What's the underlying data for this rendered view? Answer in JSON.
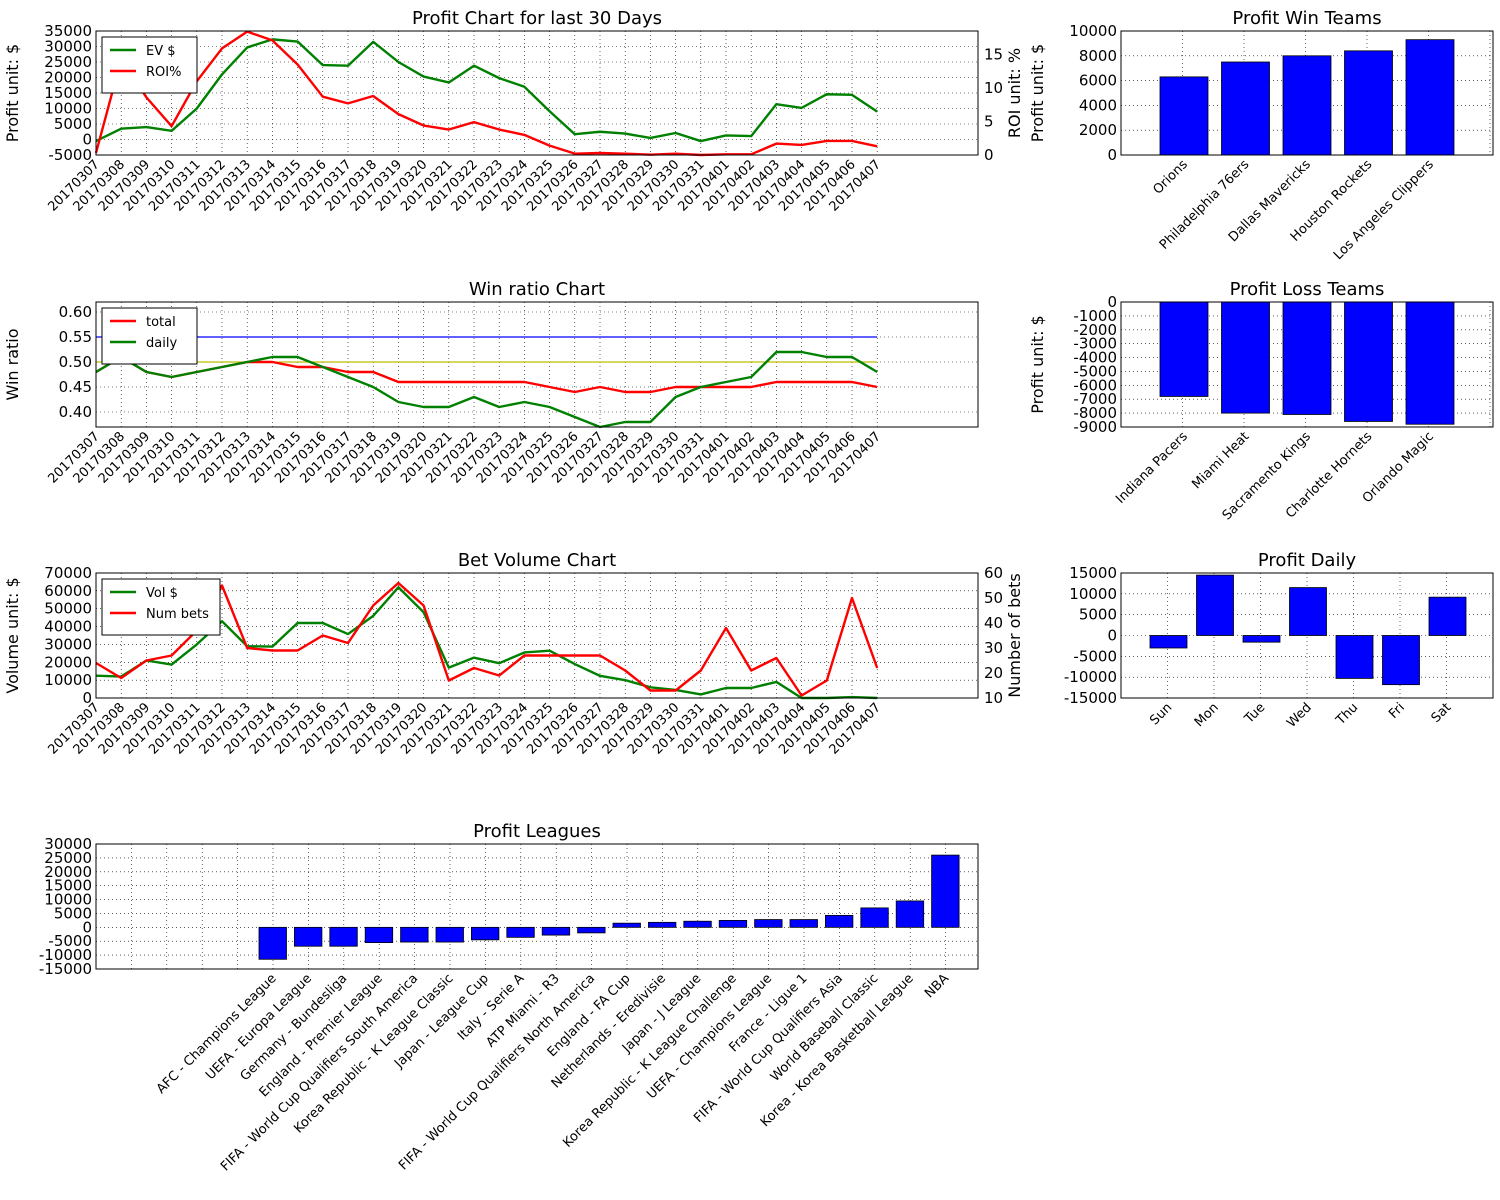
{
  "colors": {
    "green": "#008000",
    "red": "#ff0000",
    "blue": "#0000ff",
    "yellow": "#bfbf00"
  },
  "chart_data": [
    {
      "id": "profit",
      "type": "line",
      "title": "Profit Chart for last 30 Days",
      "ylabel": "Profit unit: $",
      "ylabel_right": "ROI unit: %",
      "categories": [
        "20170307",
        "20170308",
        "20170309",
        "20170310",
        "20170311",
        "20170312",
        "20170313",
        "20170314",
        "20170315",
        "20170316",
        "20170317",
        "20170318",
        "20170319",
        "20170320",
        "20170321",
        "20170322",
        "20170323",
        "20170324",
        "20170325",
        "20170326",
        "20170327",
        "20170328",
        "20170329",
        "20170330",
        "20170331",
        "20170401",
        "20170402",
        "20170403",
        "20170404",
        "20170405",
        "20170406",
        "20170407"
      ],
      "ylim": [
        -5000,
        35000
      ],
      "yticks": [
        -5000,
        0,
        5000,
        10000,
        15000,
        20000,
        25000,
        30000,
        35000
      ],
      "ylim_right": [
        0,
        18.5
      ],
      "yticks_right": [
        0,
        5,
        10,
        15
      ],
      "legend": "top-left",
      "series": [
        {
          "name": "EV $",
          "axis": "left",
          "color": "green",
          "values": [
            -500,
            3500,
            4000,
            2800,
            10000,
            21000,
            29700,
            32300,
            31600,
            24000,
            23800,
            31500,
            25000,
            20300,
            18400,
            23800,
            19800,
            17000,
            9100,
            1700,
            2500,
            1900,
            500,
            2100,
            -500,
            1300,
            1100,
            11400,
            10200,
            14600,
            14400,
            9000
          ]
        },
        {
          "name": "ROI%",
          "axis": "right",
          "color": "red",
          "values": [
            0.3,
            14.3,
            8.6,
            4.3,
            11.0,
            15.9,
            18.4,
            17.1,
            13.5,
            8.7,
            7.7,
            8.8,
            6.1,
            4.4,
            3.8,
            4.9,
            3.8,
            3.0,
            1.4,
            0.2,
            0.3,
            0.2,
            0.05,
            0.2,
            0.0,
            0.1,
            0.1,
            1.7,
            1.5,
            2.1,
            2.1,
            1.3
          ]
        }
      ]
    },
    {
      "id": "winratio",
      "type": "line",
      "title": "Win ratio Chart",
      "ylabel": "Win ratio",
      "categories": [
        "20170307",
        "20170308",
        "20170309",
        "20170310",
        "20170311",
        "20170312",
        "20170313",
        "20170314",
        "20170315",
        "20170316",
        "20170317",
        "20170318",
        "20170319",
        "20170320",
        "20170321",
        "20170322",
        "20170323",
        "20170324",
        "20170325",
        "20170326",
        "20170327",
        "20170328",
        "20170329",
        "20170330",
        "20170331",
        "20170401",
        "20170402",
        "20170403",
        "20170404",
        "20170405",
        "20170406",
        "20170407"
      ],
      "ylim": [
        0.37,
        0.62
      ],
      "yticks": [
        0.4,
        0.45,
        0.5,
        0.55,
        0.6
      ],
      "ytick_labels": [
        "0.40",
        "0.45",
        "0.50",
        "0.55",
        "0.60"
      ],
      "legend": "top-left",
      "reference_lines": [
        {
          "y": 0.55,
          "color": "blue"
        },
        {
          "y": 0.5,
          "color": "yellow"
        }
      ],
      "series": [
        {
          "name": "total",
          "color": "red",
          "values": [
            0.48,
            0.51,
            0.48,
            0.47,
            0.48,
            0.49,
            0.5,
            0.5,
            0.49,
            0.49,
            0.48,
            0.48,
            0.46,
            0.46,
            0.46,
            0.46,
            0.46,
            0.46,
            0.45,
            0.44,
            0.45,
            0.44,
            0.44,
            0.45,
            0.45,
            0.45,
            0.45,
            0.46,
            0.46,
            0.46,
            0.46,
            0.45
          ]
        },
        {
          "name": "daily",
          "color": "green",
          "values": [
            0.48,
            0.51,
            0.48,
            0.47,
            0.48,
            0.49,
            0.5,
            0.51,
            0.51,
            0.49,
            0.47,
            0.45,
            0.42,
            0.41,
            0.41,
            0.43,
            0.41,
            0.42,
            0.41,
            0.39,
            0.37,
            0.38,
            0.38,
            0.43,
            0.45,
            0.46,
            0.47,
            0.52,
            0.52,
            0.51,
            0.51,
            0.48
          ]
        }
      ]
    },
    {
      "id": "volume",
      "type": "line",
      "title": "Bet Volume Chart",
      "ylabel": "Volume unit: $",
      "ylabel_right": "Number of bets",
      "categories": [
        "20170307",
        "20170308",
        "20170309",
        "20170310",
        "20170311",
        "20170312",
        "20170313",
        "20170314",
        "20170315",
        "20170316",
        "20170317",
        "20170318",
        "20170319",
        "20170320",
        "20170321",
        "20170322",
        "20170323",
        "20170324",
        "20170325",
        "20170326",
        "20170327",
        "20170328",
        "20170329",
        "20170330",
        "20170331",
        "20170401",
        "20170402",
        "20170403",
        "20170404",
        "20170405",
        "20170406",
        "20170407"
      ],
      "ylim": [
        0,
        70000
      ],
      "yticks": [
        0,
        10000,
        20000,
        30000,
        40000,
        50000,
        60000,
        70000
      ],
      "ylim_right": [
        10,
        60
      ],
      "yticks_right": [
        10,
        20,
        30,
        40,
        50,
        60
      ],
      "legend": "top-left",
      "series": [
        {
          "name": "Vol $",
          "axis": "left",
          "color": "green",
          "values": [
            12500,
            12000,
            21000,
            18700,
            30000,
            43000,
            29000,
            28800,
            42000,
            42000,
            35800,
            46000,
            62000,
            48000,
            17000,
            22600,
            19500,
            25500,
            26500,
            19000,
            12400,
            10000,
            6000,
            4500,
            2000,
            5600,
            5600,
            9000,
            0,
            0,
            500,
            0
          ]
        },
        {
          "name": "Num bets",
          "axis": "right",
          "color": "red",
          "values": [
            24,
            18,
            25,
            27,
            37,
            55,
            30,
            29,
            29,
            35,
            32,
            47,
            56,
            47,
            17,
            22,
            19,
            27,
            27,
            27,
            27,
            21,
            13,
            13,
            21,
            38,
            21,
            26,
            11,
            17,
            50,
            22
          ]
        }
      ]
    },
    {
      "id": "winteams",
      "type": "bar",
      "title": "Profit Win Teams",
      "ylabel": "Profit unit: $",
      "ylim": [
        0,
        10000
      ],
      "yticks": [
        0,
        2000,
        4000,
        6000,
        8000,
        10000
      ],
      "categories": [
        "Orions",
        "Philadelphia 76ers",
        "Dallas Mavericks",
        "Houston Rockets",
        "Los Angeles Clippers"
      ],
      "values": [
        6300,
        7500,
        8000,
        8400,
        9300
      ]
    },
    {
      "id": "lossteams",
      "type": "bar",
      "title": "Profit Loss Teams",
      "ylabel": "Profit unit: $",
      "ylim": [
        -9000,
        0
      ],
      "yticks": [
        -9000,
        -8000,
        -7000,
        -6000,
        -5000,
        -4000,
        -3000,
        -2000,
        -1000,
        0
      ],
      "categories": [
        "Indiana Pacers",
        "Miami Heat",
        "Sacramento Kings",
        "Charlotte Hornets",
        "Orlando Magic"
      ],
      "values": [
        -6800,
        -8000,
        -8100,
        -8600,
        -8800
      ]
    },
    {
      "id": "daily",
      "type": "bar",
      "title": "Profit Daily",
      "ylim": [
        -15000,
        15000
      ],
      "yticks": [
        -15000,
        -10000,
        -5000,
        0,
        5000,
        10000,
        15000
      ],
      "categories": [
        "Sun",
        "Mon",
        "Tue",
        "Wed",
        "Thu",
        "Fri",
        "Sat"
      ],
      "values": [
        -3000,
        14500,
        -1600,
        11500,
        -10300,
        -11800,
        9200
      ]
    },
    {
      "id": "leagues",
      "type": "bar",
      "title": "Profit Leagues",
      "ylim": [
        -15000,
        30000
      ],
      "yticks": [
        -15000,
        -10000,
        -5000,
        0,
        5000,
        10000,
        15000,
        20000,
        25000,
        30000
      ],
      "categories": [
        "AFC - Champions League",
        "UEFA - Europa League",
        "Germany - Bundesliga",
        "England - Premier League",
        "FIFA - World Cup Qualifiers South America",
        "Korea Republic - K League Classic",
        "Japan - League Cup",
        "Italy - Serie A",
        "ATP Miami - R3",
        "FIFA - World Cup Qualifiers North America",
        "England - FA Cup",
        "Netherlands - Eredivisie",
        "Japan - J League",
        "Korea Republic - K League Challenge",
        "UEFA - Champions League",
        "France - Ligue 1",
        "FIFA - World Cup Qualifiers Asia",
        "World Baseball Classic",
        "Korea - Korea Basketball League",
        "NBA"
      ],
      "values": [
        -11500,
        -6800,
        -6800,
        -5500,
        -5300,
        -5300,
        -4500,
        -3600,
        -2800,
        -2000,
        1500,
        1800,
        2200,
        2500,
        2800,
        2800,
        4300,
        7000,
        9500,
        26000
      ]
    }
  ]
}
